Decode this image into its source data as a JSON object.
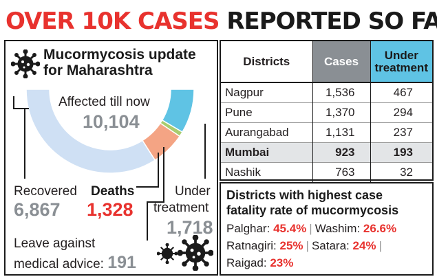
{
  "headline": {
    "part1": "OVER 10K CASES",
    "part2": "REPORTED SO FAR"
  },
  "left": {
    "title_line1": "Mucormycosis update",
    "title_line2": "for Maharashtra",
    "affected_label": "Affected till now",
    "affected_value": "10,104",
    "recovered_label": "Recovered",
    "recovered_value": "6,867",
    "deaths_label": "Deaths",
    "deaths_value": "1,328",
    "under_label1": "Under",
    "under_label2": "treatment",
    "under_value": "1,718",
    "lama_label1": "Leave against",
    "lama_label2": "medical advice:",
    "lama_value": "191"
  },
  "chart_data": {
    "type": "pie",
    "title": "Mucormycosis update for Maharashtra",
    "total_label": "Affected till now",
    "total": 10104,
    "slices": [
      {
        "name": "Recovered",
        "value": 6867
      },
      {
        "name": "Deaths",
        "value": 1328
      },
      {
        "name": "Leave against medical advice",
        "value": 191
      },
      {
        "name": "Under treatment",
        "value": 1718
      }
    ],
    "colors": {
      "Recovered": "#cfe0f4",
      "Deaths": "#f4a484",
      "Leave against medical advice": "#a9cc6e",
      "Under treatment": "#5fc3e4"
    }
  },
  "table": {
    "headers": {
      "district": "Districts",
      "cases": "Cases",
      "under1": "Under",
      "under2": "treatment"
    },
    "rows": [
      {
        "district": "Nagpur",
        "cases": "1,536",
        "under": "467"
      },
      {
        "district": "Pune",
        "cases": "1,370",
        "under": "294"
      },
      {
        "district": "Aurangabad",
        "cases": "1,131",
        "under": "237"
      },
      {
        "district": "Mumbai",
        "cases": "923",
        "under": "193"
      },
      {
        "district": "Nashik",
        "cases": "763",
        "under": "32"
      }
    ]
  },
  "cfr": {
    "title_line1": "Districts with highest case",
    "title_line2": "fatality rate of mucormycosis",
    "items": [
      {
        "district": "Palghar",
        "pct": "45.4%"
      },
      {
        "district": "Washim",
        "pct": "26.6%"
      },
      {
        "district": "Ratnagiri",
        "pct": "25%"
      },
      {
        "district": "Satara",
        "pct": "24%"
      },
      {
        "district": "Raigad",
        "pct": "23%"
      }
    ]
  },
  "icons": [
    "virus-icon"
  ],
  "colors": {
    "accent_red": "#e8322e",
    "value_grey": "#8a8f94",
    "under_blue": "#5fc3e4"
  }
}
